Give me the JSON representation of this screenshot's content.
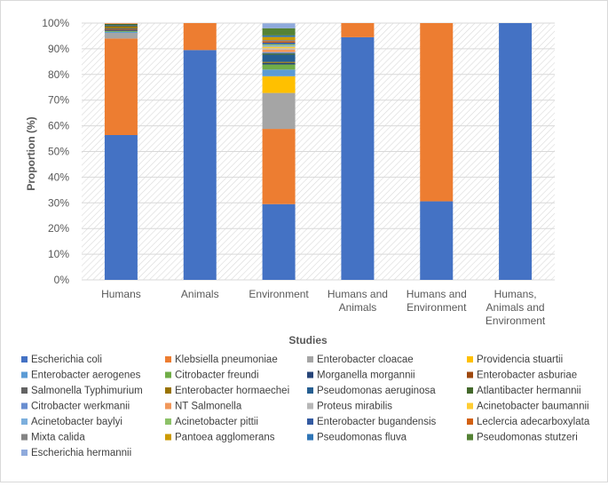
{
  "chart_data": {
    "type": "bar",
    "stacked": true,
    "title": "",
    "xlabel": "Studies",
    "ylabel": "Proportion (%)",
    "ylim": [
      0,
      100
    ],
    "yticks": [
      "0%",
      "10%",
      "20%",
      "30%",
      "40%",
      "50%",
      "60%",
      "70%",
      "80%",
      "90%",
      "100%"
    ],
    "categories": [
      [
        "Humans"
      ],
      [
        "Animals"
      ],
      [
        "Environment"
      ],
      [
        "Humans and",
        "Animals"
      ],
      [
        "Humans and",
        "Environment"
      ],
      [
        "Humans,",
        "Animals and",
        "Environment"
      ]
    ],
    "legend_position": "bottom",
    "series": [
      {
        "name": "Escherichia coli",
        "color": "#4472C4",
        "values": [
          56.4,
          89.5,
          29.5,
          94.5,
          30.6,
          100
        ]
      },
      {
        "name": "Klebsiella pneumoniae",
        "color": "#ED7D31",
        "values": [
          37.6,
          10.5,
          29.3,
          5.5,
          69.4,
          0
        ]
      },
      {
        "name": "Enterobacter cloacae",
        "color": "#A5A5A5",
        "values": [
          2.2,
          0,
          14.0,
          0,
          0,
          0
        ]
      },
      {
        "name": "Providencia stuartii",
        "color": "#FFC000",
        "values": [
          0,
          0,
          6.5,
          0,
          0,
          0
        ]
      },
      {
        "name": "Enterobacter aerogenes",
        "color": "#5B9BD5",
        "values": [
          0.4,
          0,
          2.6,
          0,
          0,
          0
        ]
      },
      {
        "name": "Citrobacter freundi",
        "color": "#70AD47",
        "values": [
          0.3,
          0,
          2.0,
          0,
          0,
          0
        ]
      },
      {
        "name": "Morganella morgannii",
        "color": "#264478",
        "values": [
          0.3,
          0,
          0.6,
          0,
          0,
          0
        ]
      },
      {
        "name": "Enterobacter asburiae",
        "color": "#9E480E",
        "values": [
          0.3,
          0,
          0,
          0,
          0,
          0
        ]
      },
      {
        "name": "Salmonella Typhimurium",
        "color": "#636363",
        "values": [
          0.5,
          0,
          0,
          0,
          0,
          0
        ]
      },
      {
        "name": "Enterobacter hormaechei",
        "color": "#997300",
        "values": [
          0.8,
          0,
          0.4,
          0,
          0,
          0
        ]
      },
      {
        "name": "Pseudomonas aeruginosa",
        "color": "#255E91",
        "values": [
          0.4,
          0,
          2.8,
          0,
          0,
          0
        ]
      },
      {
        "name": "Atlantibacter hermannii",
        "color": "#43682B",
        "values": [
          0.5,
          0,
          0.5,
          0,
          0,
          0
        ]
      },
      {
        "name": "Citrobacter werkmanii",
        "color": "#698ED0",
        "values": [
          0,
          0,
          0.5,
          0,
          0,
          0
        ]
      },
      {
        "name": "NT Salmonella",
        "color": "#F1975A",
        "values": [
          0.3,
          0,
          1.0,
          0,
          0,
          0
        ]
      },
      {
        "name": "Proteus mirabilis",
        "color": "#B7B7B7",
        "values": [
          0,
          0,
          0.5,
          0,
          0,
          0
        ]
      },
      {
        "name": "Acinetobacter baumannii",
        "color": "#FFCD33",
        "values": [
          0,
          0,
          0.6,
          0,
          0,
          0
        ]
      },
      {
        "name": "Acinetobacter baylyi",
        "color": "#7CAFDD",
        "values": [
          0,
          0,
          0.5,
          0,
          0,
          0
        ]
      },
      {
        "name": "Acinetobacter pittii",
        "color": "#8CC168",
        "values": [
          0,
          0,
          0.5,
          0,
          0,
          0
        ]
      },
      {
        "name": "Enterobacter bugandensis",
        "color": "#335AA1",
        "values": [
          0,
          0,
          0.6,
          0,
          0,
          0
        ]
      },
      {
        "name": "Leclercia adecarboxylata",
        "color": "#D26012",
        "values": [
          0,
          0,
          0.5,
          0,
          0,
          0
        ]
      },
      {
        "name": "Mixta calida",
        "color": "#848484",
        "values": [
          0,
          0,
          0.5,
          0,
          0,
          0
        ]
      },
      {
        "name": "Pantoea agglomerans",
        "color": "#CC9A00",
        "values": [
          0,
          0,
          1.2,
          0,
          0,
          0
        ]
      },
      {
        "name": "Pseudomonas fluva",
        "color": "#2E75B6",
        "values": [
          0,
          0,
          0.6,
          0,
          0,
          0
        ]
      },
      {
        "name": "Pseudomonas stutzeri",
        "color": "#548235",
        "values": [
          0,
          0,
          2.8,
          0,
          0,
          0
        ]
      },
      {
        "name": "Escherichia hermannii",
        "color": "#8FAADC",
        "values": [
          0,
          0,
          1.9,
          0,
          0,
          0
        ]
      }
    ]
  }
}
